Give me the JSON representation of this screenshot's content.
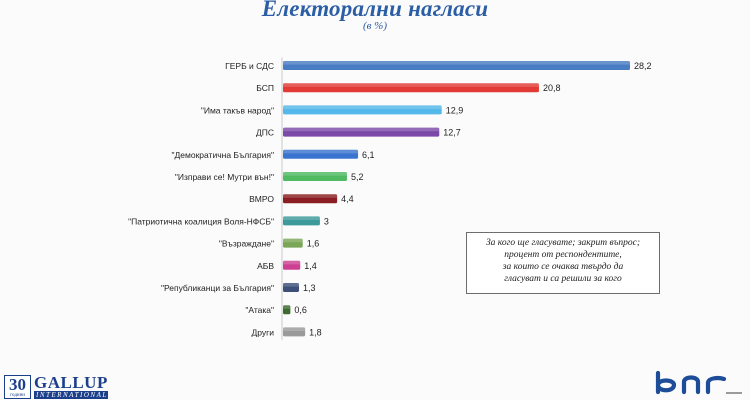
{
  "header": {
    "title": "Електорални нагласи",
    "subtitle": "(в %)"
  },
  "note": {
    "lines": [
      "За кого ще гласувате; закрит въпрос;",
      "процент от респондентите,",
      "за които се очаква твърдо да",
      "гласуват и са решили за кого"
    ]
  },
  "footer": {
    "gallup_number": "30",
    "gallup_years": "години",
    "gallup_name": "GALLUP",
    "gallup_sub": "INTERNATIONAL",
    "broadcaster_logo": "bnr-logo"
  },
  "chart_data": {
    "type": "bar",
    "orientation": "horizontal",
    "title": "Електорални нагласи",
    "subtitle": "(в %)",
    "categories": [
      "ГЕРБ и СДС",
      "БСП",
      "\"Има такъв народ\"",
      "ДПС",
      "\"Демократична България\"",
      "\"Изправи се! Мутри вън!\"",
      "ВМРО",
      "\"Патриотична коалиция Воля-НФСБ\"",
      "\"Възраждане\"",
      "АБВ",
      "\"Републиканци за България\"",
      "\"Атака\"",
      "Други"
    ],
    "values": [
      28.2,
      20.8,
      12.9,
      12.7,
      6.1,
      5.2,
      4.4,
      3,
      1.6,
      1.4,
      1.3,
      0.6,
      1.8
    ],
    "value_labels": [
      "28,2",
      "20,8",
      "12,9",
      "12,7",
      "6,1",
      "5,2",
      "4,4",
      "3",
      "1,6",
      "1,4",
      "1,3",
      "0,6",
      "1,8"
    ],
    "colors": [
      "#4a7cc4",
      "#e23b35",
      "#55b8ea",
      "#7b4aa8",
      "#3a74cf",
      "#4fba62",
      "#8a1e22",
      "#3d9a9b",
      "#7aa757",
      "#cc3f93",
      "#3e4f7a",
      "#3b6b2e",
      "#9a9a9a"
    ],
    "xlim": [
      0,
      28.2
    ],
    "grid": false,
    "legend": "none"
  }
}
